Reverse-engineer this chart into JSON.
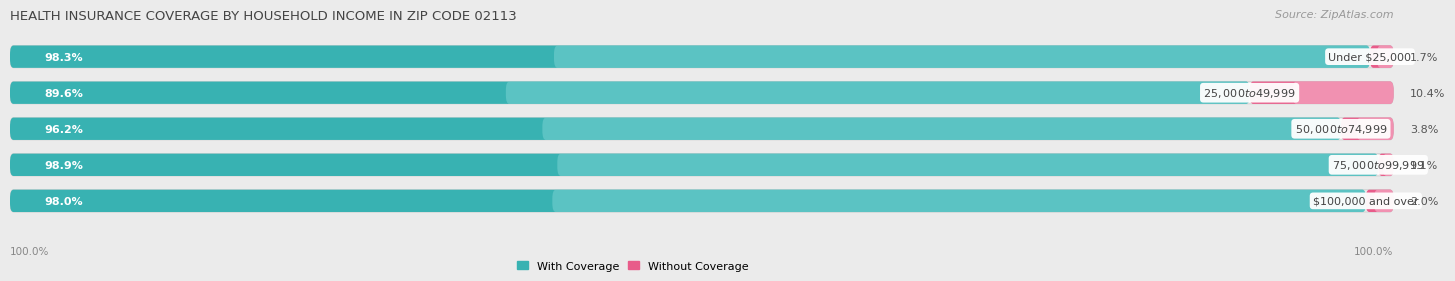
{
  "title": "HEALTH INSURANCE COVERAGE BY HOUSEHOLD INCOME IN ZIP CODE 02113",
  "source": "Source: ZipAtlas.com",
  "categories": [
    "Under $25,000",
    "$25,000 to $49,999",
    "$50,000 to $74,999",
    "$75,000 to $99,999",
    "$100,000 and over"
  ],
  "with_coverage": [
    98.3,
    89.6,
    96.2,
    98.9,
    98.0
  ],
  "without_coverage": [
    1.7,
    10.4,
    3.8,
    1.1,
    2.0
  ],
  "color_with": "#38b2b2",
  "color_with_light": "#7fd4d4",
  "color_without_dark": "#e85c8a",
  "color_without_light": "#f5a8c3",
  "bg_color": "#ebebeb",
  "bar_bg": "#ffffff",
  "bar_total_pct": 100,
  "title_fontsize": 9.5,
  "source_fontsize": 8,
  "label_fontsize": 8,
  "pct_fontsize": 8,
  "legend_fontsize": 8
}
